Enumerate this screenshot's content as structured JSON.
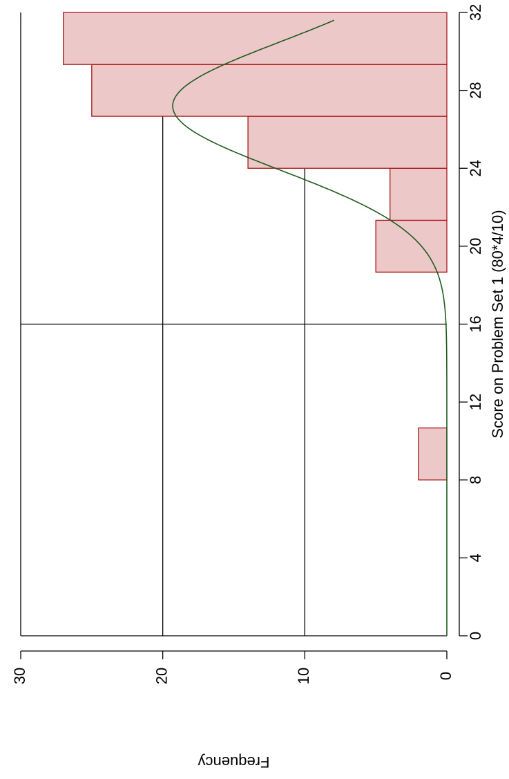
{
  "chart_data": {
    "type": "bar",
    "title": "",
    "xlabel": "Score on Problem Set 1 (80*4/10)",
    "ylabel": "Frequency",
    "orientation": "rotated-90-clockwise",
    "xlim": [
      0,
      32
    ],
    "ylim": [
      0,
      30
    ],
    "x_ticks": [
      0,
      4,
      8,
      12,
      16,
      20,
      24,
      28,
      32
    ],
    "x_tick_labels": [
      "0",
      "4",
      "8",
      "12",
      "16",
      "20",
      "24",
      "28",
      "32"
    ],
    "y_ticks": [
      0,
      10,
      20,
      30
    ],
    "y_tick_labels": [
      "0",
      "10",
      "20",
      "30"
    ],
    "grid": true,
    "grid_y": [
      10,
      20,
      30
    ],
    "grid_x": [
      0,
      16
    ],
    "bins": [
      {
        "x0": 8.0,
        "x1": 10.67,
        "count": 2
      },
      {
        "x0": 18.67,
        "x1": 21.33,
        "count": 5
      },
      {
        "x0": 21.33,
        "x1": 24.0,
        "count": 4
      },
      {
        "x0": 24.0,
        "x1": 26.67,
        "count": 14
      },
      {
        "x0": 26.67,
        "x1": 29.33,
        "count": 25
      },
      {
        "x0": 29.33,
        "x1": 32.0,
        "count": 27
      }
    ],
    "density_curve": {
      "type": "normal",
      "mean": 27.2,
      "sd": 3.3,
      "peak_frequency": 19.3,
      "x_range": [
        0,
        31.6
      ]
    },
    "colors": {
      "bar_fill": "#ecc8c8",
      "bar_stroke": "#a81818",
      "curve": "#1f5a1f",
      "grid": "#000000"
    }
  }
}
